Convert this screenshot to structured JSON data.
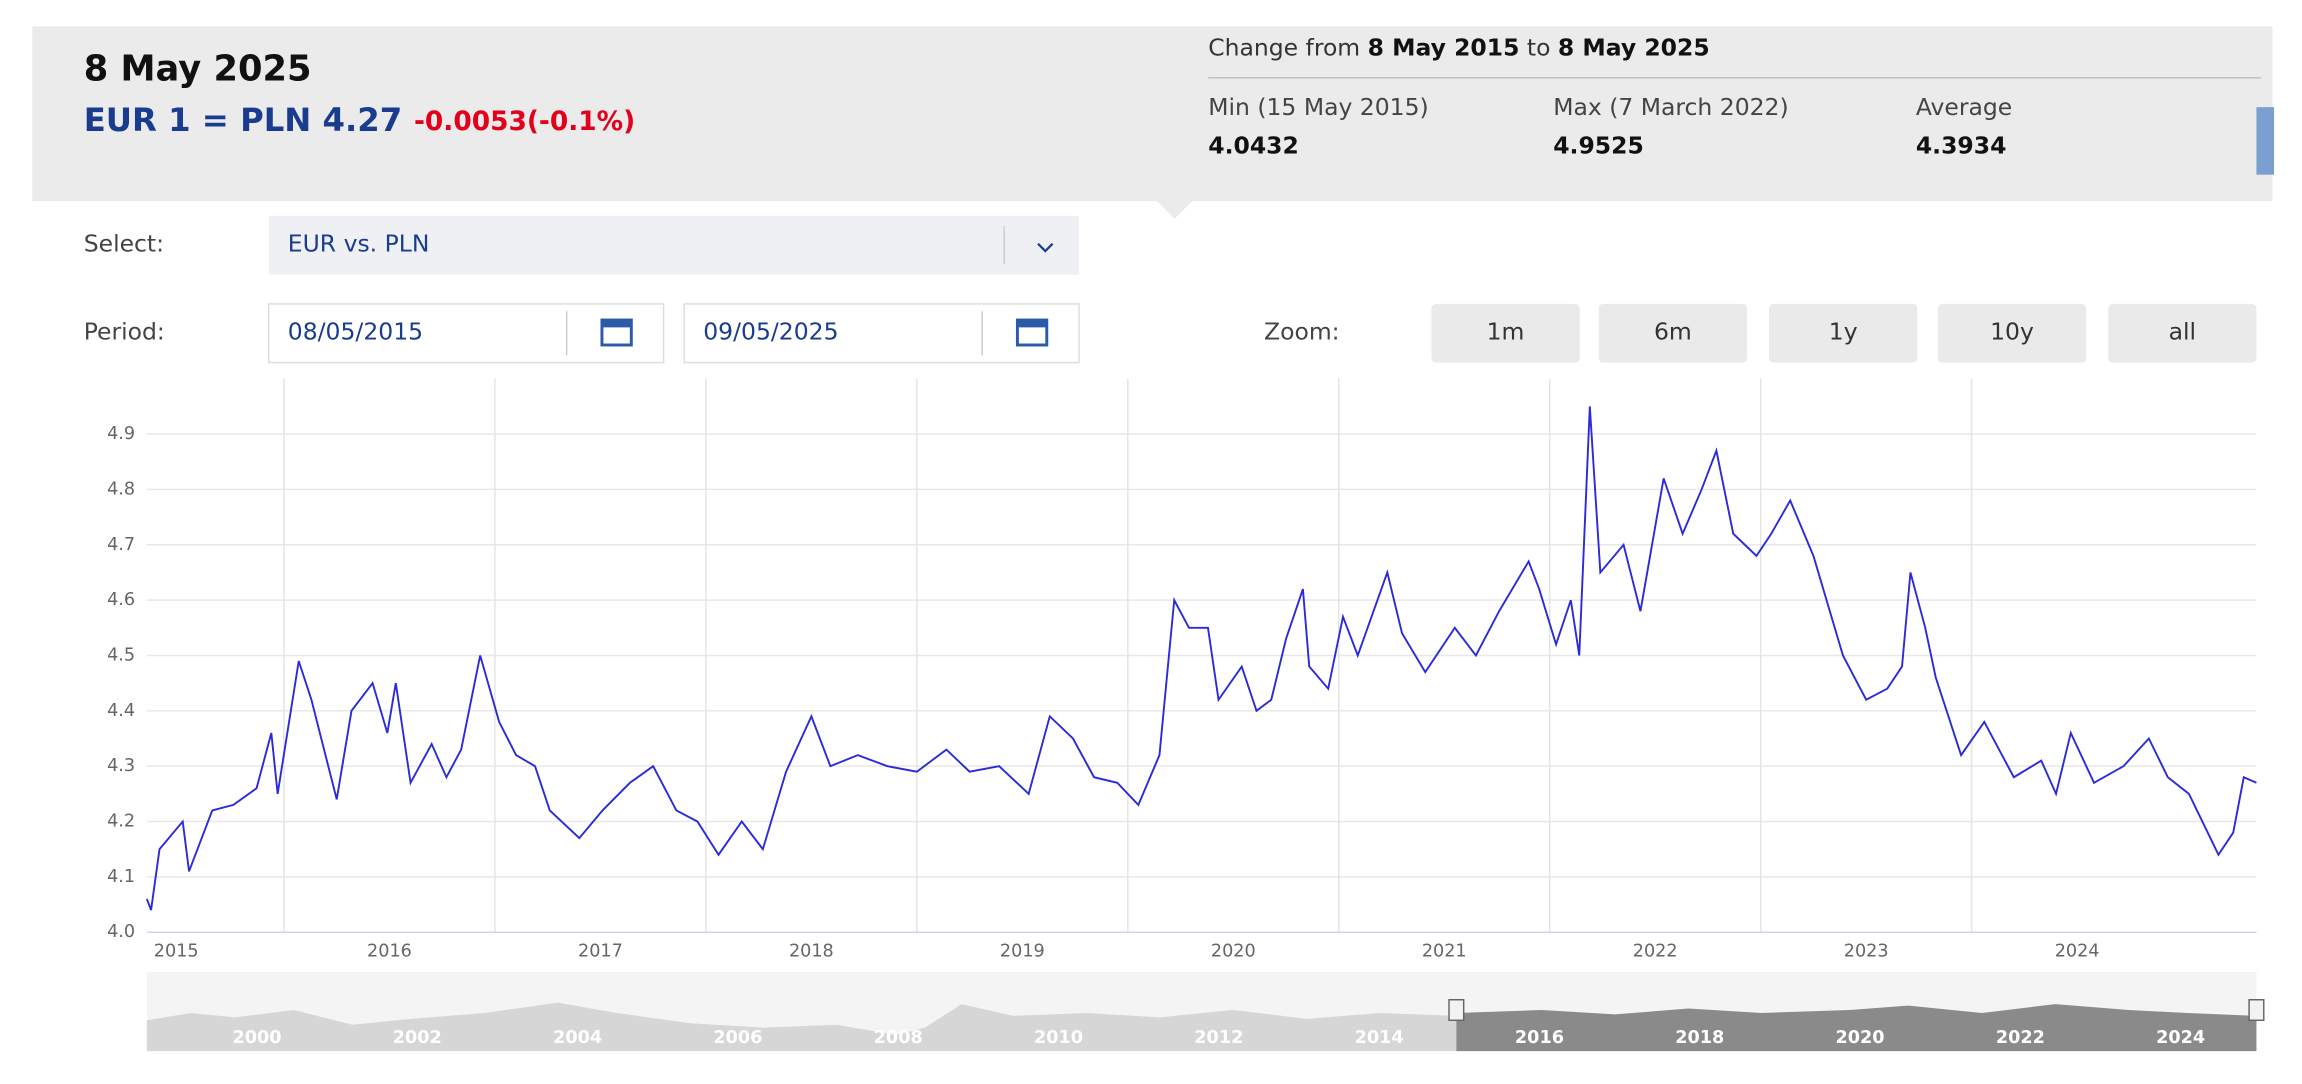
{
  "header": {
    "date": "8 May 2025",
    "rate": "EUR 1 = PLN 4.27",
    "change": "-0.0053(-0.1%)"
  },
  "summary": {
    "prefix": "Change from",
    "from": "8 May 2015",
    "joiner": "to",
    "to": "8 May 2025",
    "min_label": "Min (15 May 2015)",
    "min_value": "4.0432",
    "max_label": "Max (7 March 2022)",
    "max_value": "4.9525",
    "avg_label": "Average",
    "avg_value": "4.3934"
  },
  "controls": {
    "select_label": "Select:",
    "select_value": "EUR vs. PLN",
    "period_label": "Period:",
    "period_from": "08/05/2015",
    "period_to": "09/05/2025",
    "zoom_label": "Zoom:",
    "zoom_buttons": [
      "1m",
      "6m",
      "1y",
      "10y",
      "all"
    ]
  },
  "chart_data": {
    "type": "line",
    "color": "#2b2bd9",
    "grid": true,
    "x": [
      2015.35,
      2015.37,
      2015.41,
      2015.52,
      2015.55,
      2015.66,
      2015.76,
      2015.87,
      2015.94,
      2015.97,
      2016.07,
      2016.13,
      2016.25,
      2016.32,
      2016.42,
      2016.49,
      2016.53,
      2016.6,
      2016.7,
      2016.77,
      2016.84,
      2016.93,
      2017.02,
      2017.1,
      2017.19,
      2017.26,
      2017.4,
      2017.51,
      2017.64,
      2017.75,
      2017.86,
      2017.96,
      2018.06,
      2018.17,
      2018.27,
      2018.38,
      2018.5,
      2018.59,
      2018.72,
      2018.86,
      2019.0,
      2019.14,
      2019.25,
      2019.39,
      2019.53,
      2019.63,
      2019.74,
      2019.84,
      2019.95,
      2020.05,
      2020.15,
      2020.22,
      2020.29,
      2020.38,
      2020.43,
      2020.54,
      2020.61,
      2020.68,
      2020.75,
      2020.83,
      2020.86,
      2020.95,
      2021.02,
      2021.09,
      2021.23,
      2021.3,
      2021.41,
      2021.55,
      2021.65,
      2021.76,
      2021.9,
      2021.95,
      2022.03,
      2022.1,
      2022.14,
      2022.19,
      2022.24,
      2022.35,
      2022.43,
      2022.54,
      2022.63,
      2022.72,
      2022.79,
      2022.87,
      2022.98,
      2023.05,
      2023.14,
      2023.25,
      2023.39,
      2023.5,
      2023.6,
      2023.67,
      2023.71,
      2023.78,
      2023.83,
      2023.95,
      2024.06,
      2024.2,
      2024.33,
      2024.4,
      2024.47,
      2024.58,
      2024.72,
      2024.84,
      2024.93,
      2025.03,
      2025.17,
      2025.24,
      2025.29,
      2025.35
    ],
    "values": [
      4.06,
      4.04,
      4.15,
      4.2,
      4.11,
      4.22,
      4.23,
      4.26,
      4.36,
      4.25,
      4.49,
      4.42,
      4.24,
      4.4,
      4.45,
      4.36,
      4.45,
      4.27,
      4.34,
      4.28,
      4.33,
      4.5,
      4.38,
      4.32,
      4.3,
      4.22,
      4.17,
      4.22,
      4.27,
      4.3,
      4.22,
      4.2,
      4.14,
      4.2,
      4.15,
      4.29,
      4.39,
      4.3,
      4.32,
      4.3,
      4.29,
      4.33,
      4.29,
      4.3,
      4.25,
      4.39,
      4.35,
      4.28,
      4.27,
      4.23,
      4.32,
      4.6,
      4.55,
      4.55,
      4.42,
      4.48,
      4.4,
      4.42,
      4.53,
      4.62,
      4.48,
      4.44,
      4.57,
      4.5,
      4.65,
      4.54,
      4.47,
      4.55,
      4.5,
      4.58,
      4.67,
      4.62,
      4.52,
      4.6,
      4.5,
      4.95,
      4.65,
      4.7,
      4.58,
      4.82,
      4.72,
      4.8,
      4.87,
      4.72,
      4.68,
      4.72,
      4.78,
      4.68,
      4.5,
      4.42,
      4.44,
      4.48,
      4.65,
      4.55,
      4.46,
      4.32,
      4.38,
      4.28,
      4.31,
      4.25,
      4.36,
      4.27,
      4.3,
      4.35,
      4.28,
      4.25,
      4.14,
      4.18,
      4.28,
      4.27
    ],
    "xlim": [
      2015.35,
      2025.35
    ],
    "xticks": [
      2015,
      2016,
      2017,
      2018,
      2019,
      2020,
      2021,
      2022,
      2023,
      2024
    ],
    "ylim": [
      4.0,
      5.0
    ],
    "yticks": [
      {
        "value": 4.0,
        "label": "4.0"
      },
      4.1,
      4.2,
      4.3,
      4.4,
      4.5,
      4.6,
      4.7,
      4.8,
      4.9
    ]
  },
  "navigator": {
    "labels": [
      "2000",
      "2002",
      "2004",
      "2006",
      "2008",
      "2010",
      "2012",
      "2014",
      "2016",
      "2018",
      "2020",
      "2022",
      "2024"
    ]
  }
}
